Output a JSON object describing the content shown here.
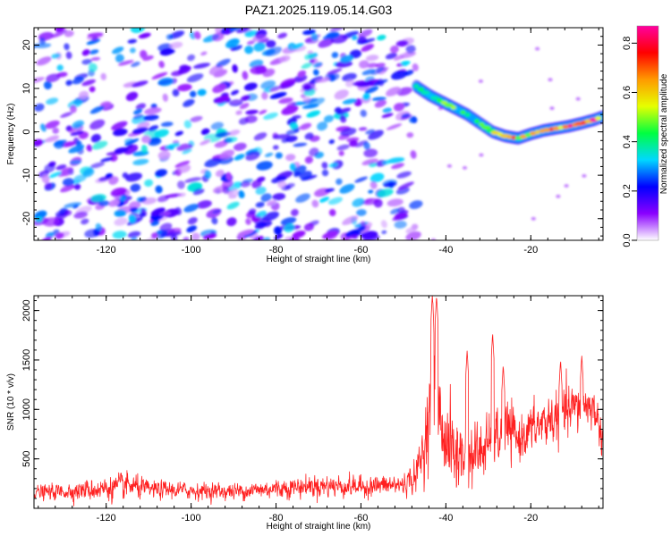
{
  "chart_data": [
    {
      "type": "heatmap",
      "title": "PAZ1.2025.119.05.14.G03",
      "xlabel": "Height of straight line (km)",
      "ylabel": "Frequency (Hz)",
      "xlim": [
        -137,
        -3
      ],
      "ylim": [
        -25,
        24
      ],
      "xticks": [
        -120,
        -100,
        -80,
        -60,
        -40,
        -20
      ],
      "yticks": [
        20,
        10,
        0,
        -10,
        -20
      ],
      "colorbar": {
        "label": "Normalized spectral amplitude",
        "range": [
          0,
          0.87
        ],
        "ticks": [
          0.0,
          0.2,
          0.4,
          0.6,
          0.8
        ],
        "colors": [
          "#ffffff",
          "#8a00ff",
          "#0000ff",
          "#00d8ff",
          "#00ff40",
          "#e6ff00",
          "#ff9a00",
          "#ff0000",
          "#ff00a0"
        ]
      },
      "noise_region": {
        "x_range": [
          -137,
          -47
        ],
        "y_range": [
          -25,
          24
        ],
        "amplitude_range": [
          0.0,
          0.35
        ]
      },
      "signal_ridge": {
        "points": [
          {
            "x": -47,
            "y": 10.5,
            "amplitude": 0.35
          },
          {
            "x": -44,
            "y": 8.5,
            "amplitude": 0.45
          },
          {
            "x": -41,
            "y": 7.0,
            "amplitude": 0.55
          },
          {
            "x": -38,
            "y": 5.5,
            "amplitude": 0.5
          },
          {
            "x": -35,
            "y": 4.0,
            "amplitude": 0.5
          },
          {
            "x": -32,
            "y": 2.0,
            "amplitude": 0.45
          },
          {
            "x": -29,
            "y": 0.0,
            "amplitude": 0.55
          },
          {
            "x": -26,
            "y": -1.0,
            "amplitude": 0.75
          },
          {
            "x": -23,
            "y": -1.5,
            "amplitude": 0.7
          },
          {
            "x": -20,
            "y": -0.5,
            "amplitude": 0.6
          },
          {
            "x": -17,
            "y": 0.3,
            "amplitude": 0.6
          },
          {
            "x": -14,
            "y": 0.8,
            "amplitude": 0.7
          },
          {
            "x": -11,
            "y": 1.3,
            "amplitude": 0.8
          },
          {
            "x": -8,
            "y": 2.0,
            "amplitude": 0.8
          },
          {
            "x": -5,
            "y": 2.8,
            "amplitude": 0.85
          },
          {
            "x": -3,
            "y": 3.5,
            "amplitude": 0.8
          }
        ]
      }
    },
    {
      "type": "line",
      "xlabel": "Height of straight line (km)",
      "ylabel": "SNR (10 * v/v)",
      "xlim": [
        -137,
        -3
      ],
      "ylim": [
        0,
        2150
      ],
      "xticks": [
        -120,
        -100,
        -80,
        -60,
        -40,
        -20
      ],
      "yticks": [
        500,
        1000,
        1500,
        2000
      ],
      "color": "#ff2020",
      "series_envelope": [
        {
          "x": -137,
          "mean": 160,
          "spread": 90
        },
        {
          "x": -130,
          "mean": 170,
          "spread": 110
        },
        {
          "x": -120,
          "mean": 200,
          "spread": 160
        },
        {
          "x": -115,
          "mean": 230,
          "spread": 180
        },
        {
          "x": -110,
          "mean": 190,
          "spread": 120
        },
        {
          "x": -100,
          "mean": 180,
          "spread": 110
        },
        {
          "x": -90,
          "mean": 170,
          "spread": 110
        },
        {
          "x": -80,
          "mean": 200,
          "spread": 130
        },
        {
          "x": -70,
          "mean": 230,
          "spread": 150
        },
        {
          "x": -60,
          "mean": 220,
          "spread": 140
        },
        {
          "x": -50,
          "mean": 240,
          "spread": 140
        },
        {
          "x": -47,
          "mean": 330,
          "spread": 220
        },
        {
          "x": -45,
          "mean": 650,
          "spread": 450
        },
        {
          "x": -43,
          "mean": 1400,
          "spread": 750
        },
        {
          "x": -41,
          "mean": 800,
          "spread": 500
        },
        {
          "x": -38,
          "mean": 550,
          "spread": 600
        },
        {
          "x": -35,
          "mean": 500,
          "spread": 400
        },
        {
          "x": -32,
          "mean": 580,
          "spread": 450
        },
        {
          "x": -29,
          "mean": 650,
          "spread": 350
        },
        {
          "x": -26,
          "mean": 800,
          "spread": 450
        },
        {
          "x": -23,
          "mean": 700,
          "spread": 300
        },
        {
          "x": -20,
          "mean": 800,
          "spread": 320
        },
        {
          "x": -15,
          "mean": 900,
          "spread": 350
        },
        {
          "x": -10,
          "mean": 1000,
          "spread": 350
        },
        {
          "x": -7,
          "mean": 1050,
          "spread": 300
        },
        {
          "x": -5,
          "mean": 1000,
          "spread": 250
        },
        {
          "x": -3,
          "mean": 700,
          "spread": 250
        }
      ],
      "peaks": [
        {
          "x": -43.2,
          "y": 2150
        },
        {
          "x": -42.2,
          "y": 2150
        },
        {
          "x": -35,
          "y": 1600
        },
        {
          "x": -29,
          "y": 1770
        },
        {
          "x": -26.5,
          "y": 1450
        },
        {
          "x": -13,
          "y": 1500
        },
        {
          "x": -8,
          "y": 1550
        }
      ]
    }
  ]
}
